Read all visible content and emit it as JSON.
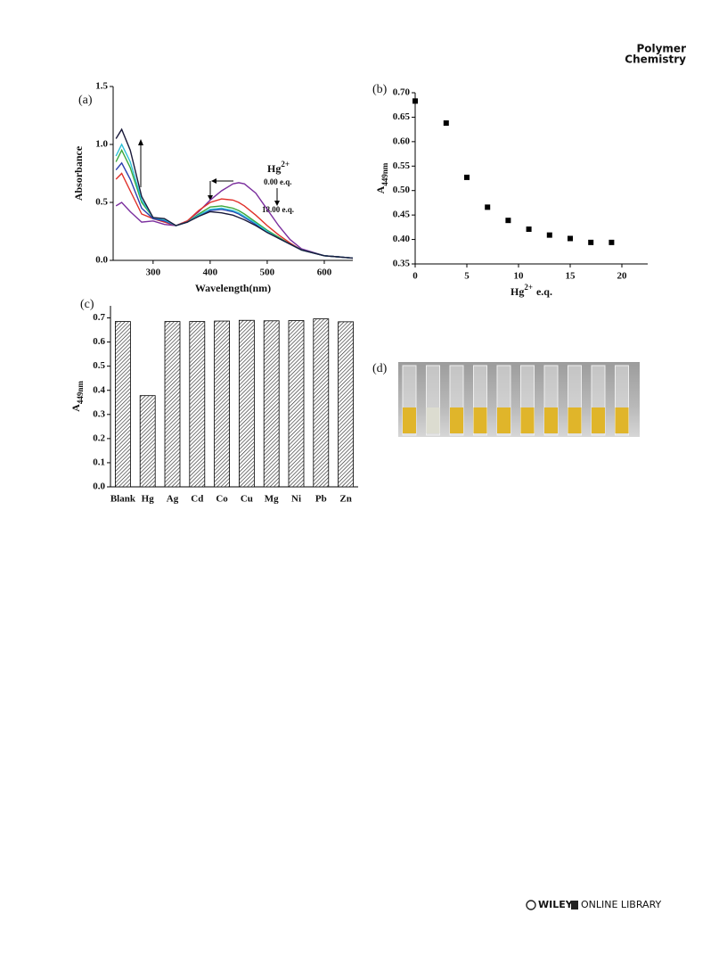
{
  "header": {
    "line1": "Polymer",
    "line2": "Chemistry"
  },
  "chart_data": [
    {
      "type": "line",
      "panel_label": "(a)",
      "xlabel": "Wavelength(nm)",
      "ylabel": "Absorbance",
      "x": [
        235,
        245,
        260,
        280,
        300,
        320,
        340,
        360,
        380,
        400,
        420,
        440,
        450,
        460,
        480,
        500,
        520,
        540,
        560,
        600,
        650
      ],
      "series": [
        {
          "color": "#7b2f9e",
          "values": [
            0.47,
            0.5,
            0.42,
            0.33,
            0.34,
            0.31,
            0.3,
            0.34,
            0.42,
            0.52,
            0.6,
            0.66,
            0.67,
            0.66,
            0.58,
            0.44,
            0.3,
            0.18,
            0.1,
            0.04,
            0.02
          ]
        },
        {
          "color": "#e0302a",
          "values": [
            0.7,
            0.75,
            0.6,
            0.4,
            0.36,
            0.33,
            0.3,
            0.34,
            0.43,
            0.5,
            0.53,
            0.52,
            0.5,
            0.47,
            0.39,
            0.3,
            0.22,
            0.15,
            0.09,
            0.04,
            0.02
          ]
        },
        {
          "color": "#3aa83a",
          "values": [
            0.85,
            0.95,
            0.8,
            0.5,
            0.37,
            0.35,
            0.3,
            0.33,
            0.4,
            0.46,
            0.47,
            0.45,
            0.43,
            0.4,
            0.33,
            0.26,
            0.2,
            0.14,
            0.09,
            0.04,
            0.02
          ]
        },
        {
          "color": "#2b3fb0",
          "values": [
            0.78,
            0.84,
            0.7,
            0.45,
            0.36,
            0.34,
            0.3,
            0.33,
            0.39,
            0.43,
            0.44,
            0.42,
            0.4,
            0.37,
            0.31,
            0.25,
            0.19,
            0.14,
            0.09,
            0.04,
            0.02
          ]
        },
        {
          "color": "#2cc0d8",
          "values": [
            0.9,
            1.0,
            0.85,
            0.52,
            0.37,
            0.35,
            0.3,
            0.33,
            0.39,
            0.44,
            0.45,
            0.43,
            0.41,
            0.38,
            0.32,
            0.25,
            0.19,
            0.14,
            0.09,
            0.04,
            0.02
          ]
        },
        {
          "color": "#1a1a3a",
          "values": [
            1.05,
            1.13,
            0.95,
            0.55,
            0.37,
            0.36,
            0.3,
            0.33,
            0.38,
            0.42,
            0.41,
            0.39,
            0.37,
            0.35,
            0.3,
            0.24,
            0.19,
            0.14,
            0.09,
            0.04,
            0.02
          ]
        }
      ],
      "xlim": [
        230,
        650
      ],
      "xticks": [
        300,
        400,
        500,
        600
      ],
      "ylim": [
        0,
        1.5
      ],
      "yticks": [
        {
          "value": 0,
          "label": "0.0"
        },
        0.5,
        {
          "value": 1,
          "label": "1.0"
        },
        1.5
      ],
      "annotations": {
        "ion": "Hg",
        "charge": "2+",
        "start": "0.00 e.q.",
        "end": "18.00 e.q."
      }
    },
    {
      "type": "scatter",
      "panel_label": "(b)",
      "xlabel": {
        "text": "Hg",
        "sup": "2+",
        "after": "e.q."
      },
      "ylabel": {
        "text": "A",
        "sub": "449nm"
      },
      "color": "#000000",
      "x": [
        0,
        3,
        5,
        7,
        9,
        11,
        13,
        15,
        17,
        19
      ],
      "values": [
        0.683,
        0.638,
        0.527,
        0.466,
        0.439,
        0.421,
        0.409,
        0.402,
        0.394,
        0.394
      ],
      "xlim": [
        0,
        22.5
      ],
      "xticks": [
        0,
        5,
        10,
        15,
        20
      ],
      "ylim": [
        0.35,
        0.7
      ],
      "yticks": [
        0.35,
        {
          "value": 0.4,
          "label": "0.40"
        },
        0.45,
        {
          "value": 0.5,
          "label": "0.50"
        },
        0.55,
        {
          "value": 0.6,
          "label": "0.60"
        },
        0.65,
        {
          "value": 0.7,
          "label": "0.70"
        }
      ]
    },
    {
      "type": "bar",
      "panel_label": "(c)",
      "ylabel": {
        "text": "A",
        "sub": "449nm"
      },
      "categories": [
        "Blank",
        "Hg",
        "Ag",
        "Cd",
        "Co",
        "Cu",
        "Mg",
        "Ni",
        "Pb",
        "Zn"
      ],
      "values": [
        0.685,
        0.378,
        0.685,
        0.685,
        0.687,
        0.69,
        0.688,
        0.689,
        0.696,
        0.684
      ],
      "ylim": [
        0,
        0.75
      ],
      "yticks": [
        {
          "value": 0,
          "label": "0.0"
        },
        0.1,
        0.2,
        0.3,
        0.4,
        0.5,
        0.6,
        0.7
      ]
    }
  ],
  "figure_d": {
    "panel_label": "(d)"
  },
  "footer": {
    "brand": "WILEY",
    "library": "ONLINE LIBRARY"
  }
}
